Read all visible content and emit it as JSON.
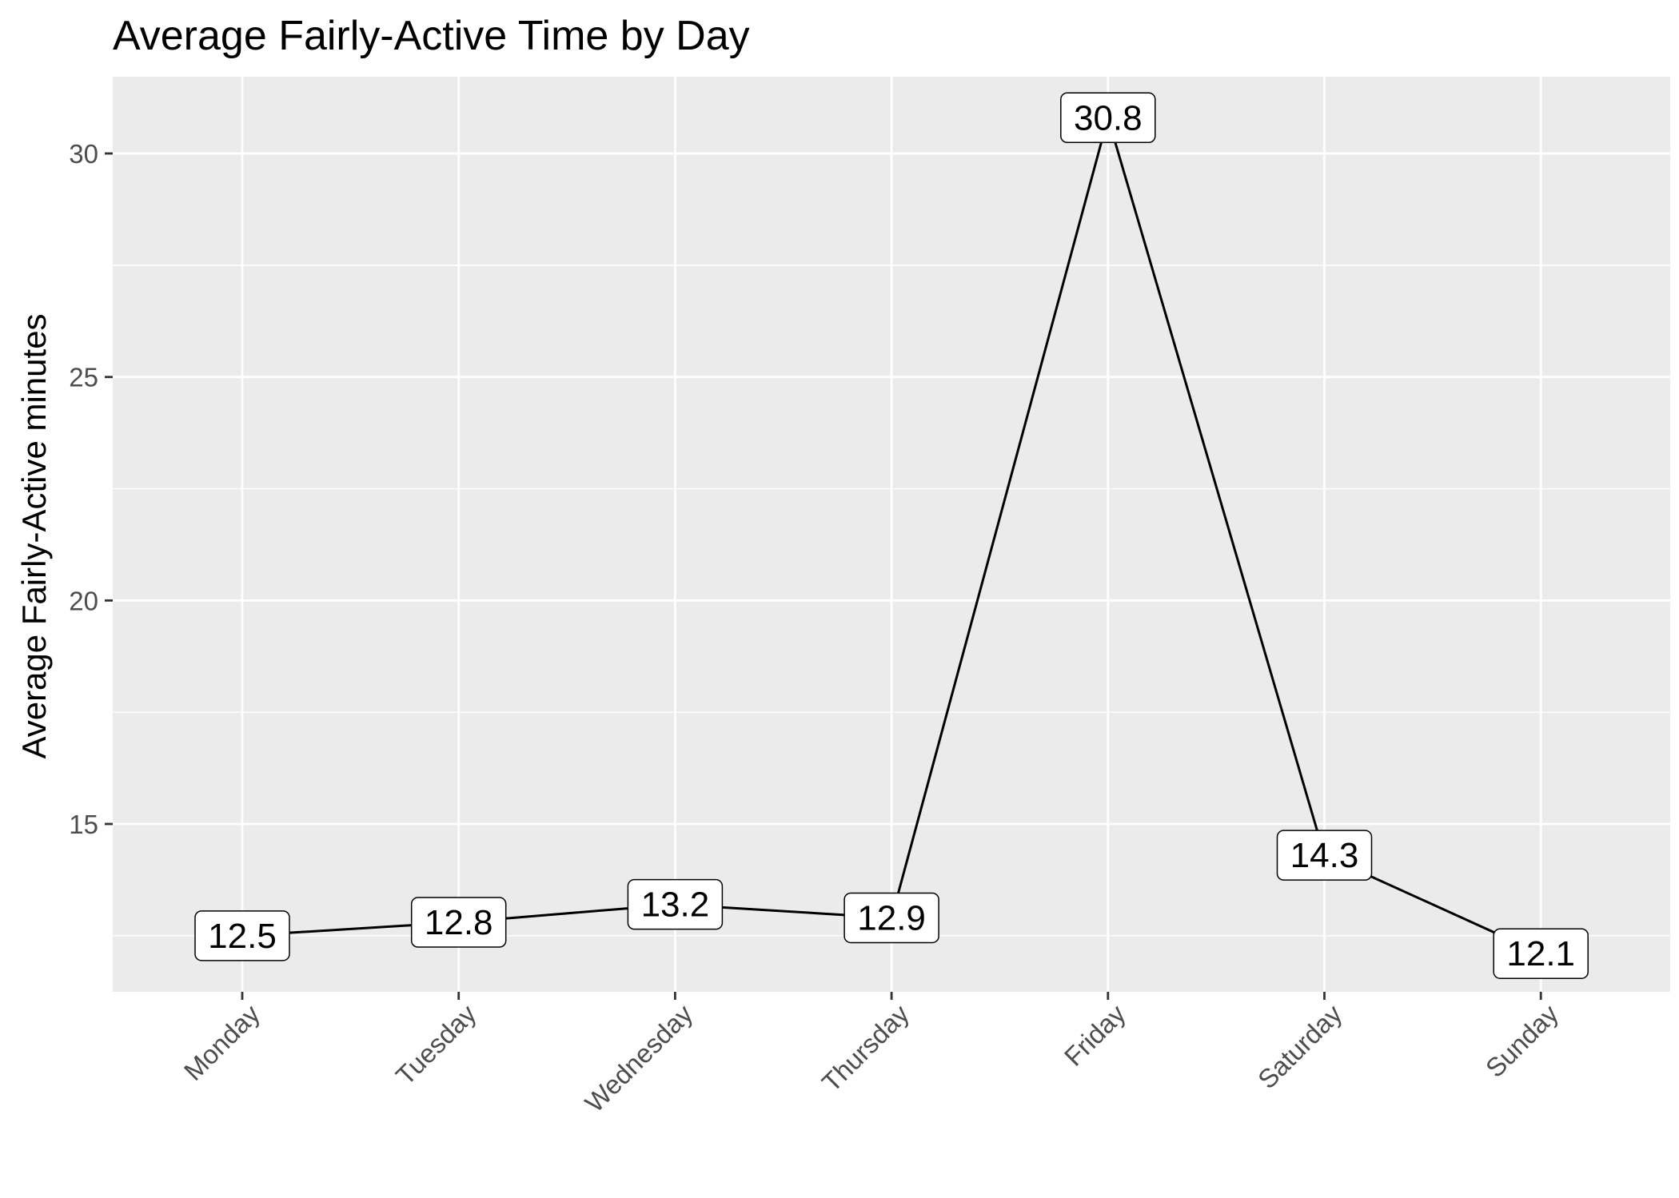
{
  "chart_data": {
    "type": "line",
    "title": "Average Fairly-Active Time by Day",
    "xlabel": "",
    "ylabel": "Average Fairly-Active minutes",
    "categories": [
      "Monday",
      "Tuesday",
      "Wednesday",
      "Thursday",
      "Friday",
      "Saturday",
      "Sunday"
    ],
    "values": [
      12.5,
      12.8,
      13.2,
      12.9,
      30.8,
      14.3,
      12.1
    ],
    "data_labels": [
      "12.5",
      "12.8",
      "13.2",
      "12.9",
      "30.8",
      "14.3",
      "12.1"
    ],
    "yticks": [
      15,
      20,
      25,
      30
    ],
    "ytick_labels": [
      "15",
      "20",
      "25",
      "30"
    ],
    "ylim": [
      11.2,
      31.7
    ],
    "grid": true,
    "legend": "none",
    "colors": {
      "panel": "#ebebeb",
      "grid": "#ffffff",
      "line": "#000000",
      "label_fill": "#ffffff",
      "label_border": "#000000",
      "tick_text": "#4d4d4d"
    }
  }
}
